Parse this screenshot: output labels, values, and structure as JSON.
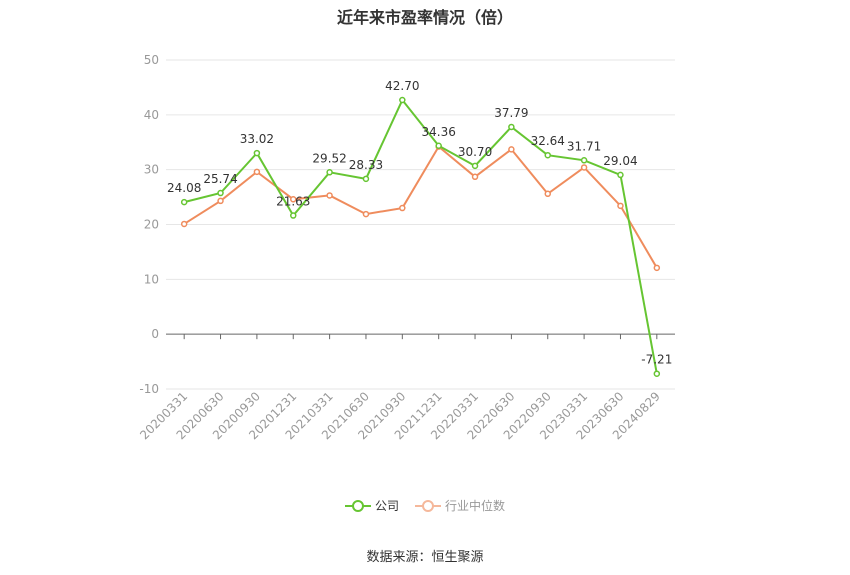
{
  "chart_data": {
    "type": "line",
    "title": "近年来市盈率情况（倍）",
    "categories": [
      "20200331",
      "20200630",
      "20200930",
      "20201231",
      "20210331",
      "20210630",
      "20210930",
      "20211231",
      "20220331",
      "20220630",
      "20220930",
      "20230331",
      "20230630",
      "20240829"
    ],
    "series": [
      {
        "name": "公司",
        "color": "#66c532",
        "values": [
          24.08,
          25.74,
          33.02,
          21.63,
          29.52,
          28.33,
          42.7,
          34.36,
          30.7,
          37.79,
          32.64,
          31.71,
          29.04,
          -7.21
        ],
        "labels": [
          "24.08",
          "25.74",
          "33.02",
          "21.63",
          "29.52",
          "28.33",
          "42.70",
          "34.36",
          "30.70",
          "37.79",
          "32.64",
          "31.71",
          "29.04",
          "-7.21"
        ]
      },
      {
        "name": "行业中位数",
        "color": "#ef8c5d",
        "values": [
          20.1,
          24.3,
          29.6,
          24.6,
          25.3,
          21.9,
          23.0,
          34.2,
          28.7,
          33.7,
          25.6,
          30.4,
          23.4,
          12.1
        ]
      }
    ],
    "ylim": [
      -10,
      50
    ],
    "yticks": [
      "-10",
      "0",
      "10",
      "20",
      "30",
      "40",
      "50"
    ],
    "grid": true,
    "legend_position": "bottom"
  },
  "legend": {
    "company": "公司",
    "industry": "行业中位数"
  },
  "source": "数据来源：恒生聚源"
}
